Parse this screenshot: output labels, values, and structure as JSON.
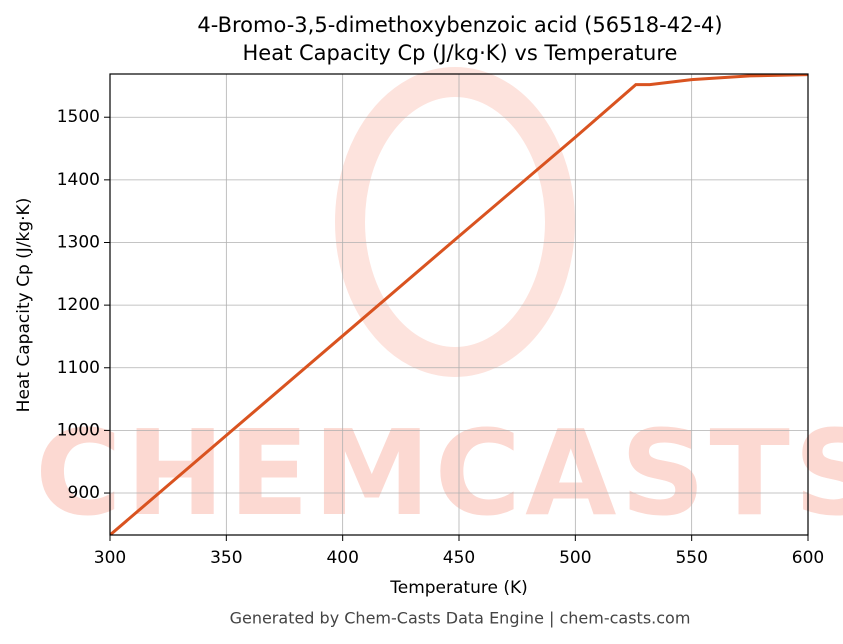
{
  "chart_data": {
    "type": "line",
    "title": "4-Bromo-3,5-dimethoxybenzoic acid (56518-42-4)",
    "subtitle": "Heat Capacity Cp (J/kg·K) vs Temperature",
    "x_label": "Temperature (K)",
    "y_label": "Heat Capacity Cp (J/kg·K)",
    "x": [
      300,
      350,
      400,
      450,
      500,
      526,
      532,
      550,
      575,
      600
    ],
    "series": [
      {
        "name": "Heat Capacity Cp",
        "color": "#d95320",
        "values": [
          833,
          992,
          1151,
          1310,
          1468,
          1552,
          1552,
          1560,
          1566,
          1568
        ]
      }
    ],
    "xlim": [
      300,
      600
    ],
    "xticks": [
      300,
      350,
      400,
      450,
      500,
      550,
      600
    ],
    "ylim": [
      833,
      1569
    ],
    "yticks": [
      900,
      1000,
      1100,
      1200,
      1300,
      1400,
      1500
    ],
    "grid": true,
    "watermark": "CHEMCASTS",
    "footer": "Generated by Chem-Casts Data Engine | chem-casts.com"
  }
}
